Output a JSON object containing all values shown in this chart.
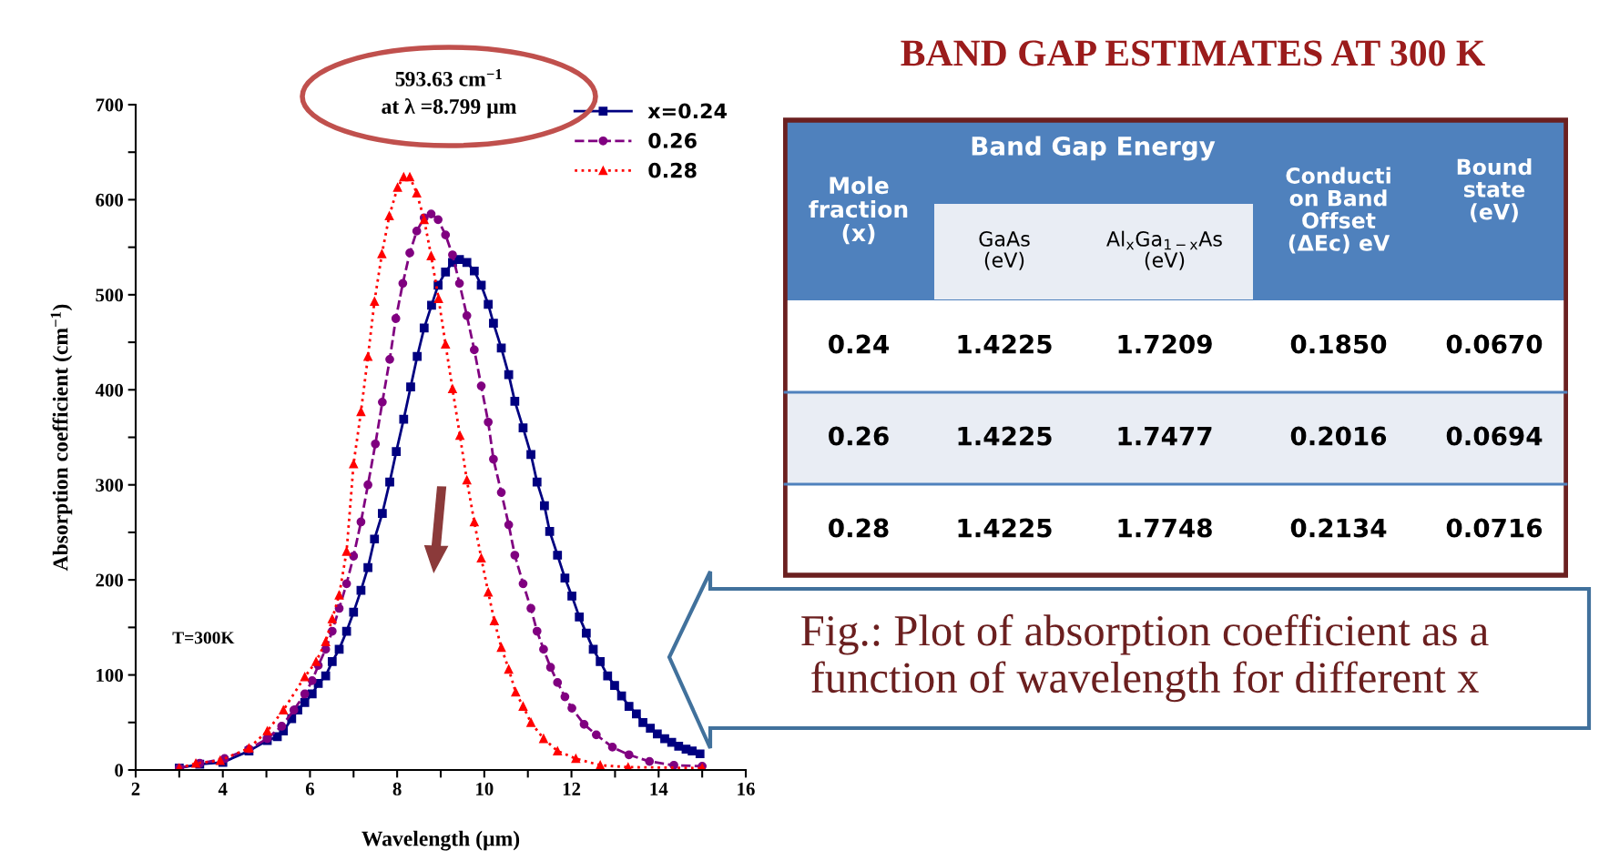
{
  "chart_data": [
    {
      "type": "line",
      "xlabel": "Wavelength (µm)",
      "ylabel": "Absorption coefficient (cm$^{−1}$)",
      "xlim": [
        2,
        16
      ],
      "xticks": [
        2,
        {
          "value": 3,
          "label": null
        },
        4,
        {
          "value": 5,
          "label": null
        },
        6,
        {
          "value": 7,
          "label": null
        },
        8,
        {
          "value": 9,
          "label": null
        },
        10,
        {
          "value": 11,
          "label": null
        },
        12,
        {
          "value": 13,
          "label": null
        },
        14,
        {
          "value": 15,
          "label": null
        },
        16
      ],
      "ylim": [
        0,
        700
      ],
      "yticks": [
        0,
        {
          "value": 50,
          "label": null
        },
        100,
        {
          "value": 150,
          "label": null
        },
        200,
        {
          "value": 250,
          "label": null
        },
        300,
        {
          "value": 350,
          "label": null
        },
        400,
        {
          "value": 450,
          "label": null
        },
        500,
        {
          "value": 550,
          "label": null
        },
        600,
        {
          "value": 650,
          "label": null
        },
        700
      ],
      "grid": false,
      "legend": "top right",
      "annotations": [
        "T=300K",
        "593.63 cm$^{−1}$\nat λ =8.799 µm",
        "Fig.: Plot of absorption coefficient as a\nfunction of wavelength for different x"
      ],
      "series": [
        {
          "name": "x=0.24",
          "color": "#000080",
          "marker": "square",
          "line_style": "solid",
          "x": [
            3.0,
            3.47,
            4.0,
            4.6,
            5.02,
            5.25,
            5.39,
            5.58,
            5.72,
            5.88,
            6.05,
            6.19,
            6.36,
            6.51,
            6.67,
            6.84,
            7.0,
            7.17,
            7.33,
            7.48,
            7.66,
            7.83,
            7.98,
            8.15,
            8.31,
            8.46,
            8.62,
            8.79,
            8.94,
            9.11,
            9.27,
            9.43,
            9.6,
            9.77,
            9.93,
            10.09,
            10.21,
            10.39,
            10.56,
            10.7,
            10.89,
            11.07,
            11.21,
            11.38,
            11.5,
            11.68,
            11.85,
            12.01,
            12.18,
            12.34,
            12.5,
            12.66,
            12.83,
            12.99,
            13.15,
            13.32,
            13.49,
            13.64,
            13.81,
            13.97,
            14.14,
            14.3,
            14.46,
            14.63,
            14.77,
            14.95
          ],
          "values": [
            2,
            6,
            8,
            20,
            31,
            35,
            41,
            54,
            63,
            71,
            80,
            91,
            99,
            114,
            127,
            146,
            166,
            189,
            213,
            243,
            270,
            303,
            335,
            369,
            403,
            435,
            465,
            489,
            510,
            524,
            534,
            537,
            534,
            525,
            510,
            490,
            470,
            444,
            416,
            388,
            360,
            332,
            303,
            278,
            251,
            226,
            202,
            183,
            161,
            144,
            127,
            114,
            99,
            89,
            78,
            67,
            59,
            50,
            44,
            38,
            33,
            29,
            25,
            22,
            20,
            17
          ]
        },
        {
          "name": "0.26",
          "color": "#800080",
          "marker": "circle",
          "line_style": "dashed",
          "x": [
            3.0,
            3.47,
            4.04,
            4.6,
            5.02,
            5.35,
            5.63,
            5.88,
            6.05,
            6.19,
            6.36,
            6.51,
            6.67,
            6.84,
            7.0,
            7.17,
            7.33,
            7.5,
            7.66,
            7.83,
            7.97,
            8.13,
            8.29,
            8.45,
            8.62,
            8.78,
            8.94,
            9.11,
            9.27,
            9.43,
            9.6,
            9.77,
            9.93,
            10.09,
            10.21,
            10.39,
            10.56,
            10.7,
            10.89,
            11.07,
            11.21,
            11.36,
            11.52,
            11.68,
            11.85,
            12.01,
            12.29,
            12.57,
            12.94,
            13.32,
            13.79,
            14.35,
            15.0
          ],
          "values": [
            2,
            7,
            12,
            22,
            33,
            46,
            63,
            80,
            94,
            110,
            127,
            146,
            170,
            196,
            225,
            261,
            300,
            343,
            387,
            432,
            475,
            512,
            544,
            567,
            581,
            585,
            579,
            563,
            542,
            512,
            478,
            442,
            404,
            366,
            327,
            292,
            258,
            226,
            196,
            170,
            146,
            127,
            108,
            92,
            77,
            65,
            48,
            37,
            24,
            16,
            9,
            5,
            4
          ]
        },
        {
          "name": "0.28",
          "color": "#ff0000",
          "marker": "triangle",
          "line_style": "dotted",
          "x": [
            3.0,
            3.38,
            3.94,
            4.6,
            5.02,
            5.39,
            5.88,
            6.14,
            6.36,
            6.51,
            6.67,
            6.84,
            7.0,
            7.17,
            7.33,
            7.48,
            7.65,
            7.82,
            8.01,
            8.15,
            8.29,
            8.45,
            8.62,
            8.78,
            8.95,
            9.11,
            9.27,
            9.44,
            9.6,
            9.77,
            9.93,
            10.09,
            10.23,
            10.39,
            10.56,
            10.72,
            10.89,
            11.07,
            11.36,
            11.68,
            12.1,
            12.66,
            13.3,
            15.0
          ],
          "values": [
            2,
            7,
            10,
            23,
            41,
            63,
            98,
            114,
            135,
            159,
            184,
            230,
            322,
            377,
            435,
            493,
            543,
            583,
            613,
            624,
            624,
            607,
            579,
            541,
            496,
            448,
            401,
            352,
            305,
            261,
            223,
            187,
            157,
            129,
            106,
            82,
            67,
            50,
            33,
            20,
            12,
            5,
            3,
            2
          ]
        }
      ]
    },
    {
      "type": "other",
      "title": "BAND GAP ESTIMATES AT 300 K",
      "annotations": [
        "Mole\nfraction\n(x)",
        "Band Gap Energy"
      ],
      "categories": [
        "GaAs\n(eV)",
        "Al$_{x}$Ga$_{1−x}$As\n(eV)",
        "Conducti\non Band\nOffset\n(ΔEc) eV",
        "Bound\nstate\n(eV)"
      ],
      "y_categories": [
        "0.24",
        "0.26",
        "0.28"
      ],
      "cell_labels": [
        [
          "1.4225",
          "1.7209",
          "0.1850",
          "0.0670"
        ],
        [
          "1.4225",
          "1.7477",
          "0.2016",
          "0.0694"
        ],
        [
          "1.4225",
          "1.7748",
          "0.2134",
          "0.0716"
        ]
      ]
    }
  ]
}
